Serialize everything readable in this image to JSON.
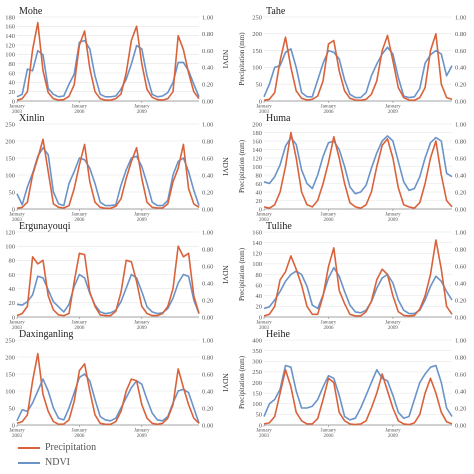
{
  "colors": {
    "precipitation": "#d9623b",
    "ndvi": "#6a93c9",
    "grid": "#e3e3e3",
    "axis": "#888888"
  },
  "legend": {
    "precipitation_label": "Precipitation",
    "ndvi_label": "NDVI"
  },
  "left_y_label": "Precipitation (mm)",
  "right_y_label": "NDVI",
  "x_ticks": [
    {
      "label": "January",
      "year": "2003",
      "i": 0
    },
    {
      "label": "January",
      "year": "2006",
      "i": 12
    },
    {
      "label": "January",
      "year": "2009",
      "i": 24
    }
  ],
  "chart_data": [
    {
      "type": "line",
      "title": "Mohe",
      "ylim": [
        0,
        180
      ],
      "yticks": [
        0,
        20,
        40,
        60,
        80,
        100,
        120,
        140,
        160,
        180
      ],
      "ylim2": [
        0,
        1.0
      ],
      "yticks2": [
        "0.00",
        "0.20",
        "0.40",
        "0.60",
        "0.80",
        "1.00"
      ],
      "show_left_label": false,
      "show_right_label": true,
      "series": [
        {
          "name": "Precipitation",
          "values": [
            2,
            5,
            20,
            110,
            168,
            65,
            18,
            5,
            2,
            3,
            10,
            35,
            120,
            150,
            70,
            20,
            5,
            2,
            2,
            5,
            15,
            60,
            130,
            160,
            80,
            25,
            8,
            3,
            2,
            5,
            20,
            140,
            110,
            60,
            20,
            5
          ]
        },
        {
          "name": "NDVI",
          "values": [
            0.05,
            0.08,
            0.38,
            0.36,
            0.6,
            0.55,
            0.15,
            0.08,
            0.05,
            0.06,
            0.2,
            0.32,
            0.7,
            0.72,
            0.62,
            0.3,
            0.08,
            0.05,
            0.05,
            0.06,
            0.14,
            0.26,
            0.44,
            0.66,
            0.62,
            0.3,
            0.08,
            0.05,
            0.06,
            0.1,
            0.22,
            0.46,
            0.46,
            0.36,
            0.2,
            0.05
          ]
        }
      ]
    },
    {
      "type": "line",
      "title": "Tahe",
      "ylim": [
        0,
        250
      ],
      "yticks": [
        0,
        50,
        100,
        150,
        200,
        250
      ],
      "ylim2": [
        0,
        1.0
      ],
      "yticks2": [
        "0.00",
        "0.20",
        "0.40",
        "0.60",
        "0.80",
        "1.00"
      ],
      "show_left_label": true,
      "show_right_label": false,
      "series": [
        {
          "name": "Precipitation",
          "values": [
            2,
            5,
            25,
            120,
            190,
            100,
            30,
            8,
            3,
            5,
            15,
            60,
            170,
            180,
            90,
            30,
            8,
            3,
            2,
            5,
            20,
            60,
            150,
            195,
            120,
            40,
            10,
            3,
            2,
            10,
            40,
            150,
            200,
            50,
            10,
            5
          ]
        },
        {
          "name": "NDVI",
          "values": [
            0.05,
            0.2,
            0.4,
            0.42,
            0.58,
            0.62,
            0.4,
            0.1,
            0.05,
            0.05,
            0.25,
            0.45,
            0.6,
            0.58,
            0.5,
            0.25,
            0.08,
            0.04,
            0.04,
            0.1,
            0.3,
            0.44,
            0.56,
            0.64,
            0.56,
            0.28,
            0.06,
            0.04,
            0.05,
            0.15,
            0.45,
            0.55,
            0.6,
            0.56,
            0.3,
            0.42
          ]
        }
      ]
    },
    {
      "type": "line",
      "title": "Xinlin",
      "ylim": [
        0,
        250
      ],
      "yticks": [
        0,
        50,
        100,
        150,
        200,
        250
      ],
      "ylim2": [
        0,
        1.0
      ],
      "yticks2": [
        "0.00",
        "0.20",
        "0.40",
        "0.60",
        "0.80",
        "1.00"
      ],
      "show_left_label": false,
      "show_right_label": true,
      "series": [
        {
          "name": "Precipitation",
          "values": [
            2,
            5,
            20,
            100,
            150,
            205,
            110,
            15,
            5,
            3,
            10,
            60,
            130,
            190,
            80,
            20,
            5,
            2,
            2,
            8,
            30,
            90,
            140,
            180,
            90,
            20,
            5,
            3,
            3,
            15,
            80,
            120,
            190,
            60,
            15,
            5
          ]
        },
        {
          "name": "NDVI",
          "values": [
            0.18,
            0.05,
            0.26,
            0.42,
            0.62,
            0.72,
            0.64,
            0.2,
            0.06,
            0.04,
            0.3,
            0.44,
            0.6,
            0.58,
            0.48,
            0.3,
            0.08,
            0.04,
            0.04,
            0.05,
            0.28,
            0.46,
            0.6,
            0.62,
            0.5,
            0.3,
            0.08,
            0.04,
            0.04,
            0.1,
            0.4,
            0.56,
            0.6,
            0.44,
            0.22,
            0.04
          ]
        }
      ]
    },
    {
      "type": "line",
      "title": "Huma",
      "ylim": [
        0,
        200
      ],
      "yticks": [
        0,
        20,
        40,
        60,
        80,
        100,
        120,
        140,
        160,
        180,
        200
      ],
      "ylim2": [
        0,
        1.0
      ],
      "yticks2": [
        "0.00",
        "0.20",
        "0.40",
        "0.60",
        "0.80",
        "1.00"
      ],
      "show_left_label": true,
      "show_right_label": false,
      "series": [
        {
          "name": "Precipitation",
          "values": [
            5,
            2,
            10,
            40,
            100,
            180,
            120,
            40,
            10,
            5,
            20,
            60,
            110,
            170,
            120,
            60,
            15,
            5,
            2,
            10,
            40,
            100,
            150,
            165,
            120,
            50,
            10,
            5,
            2,
            15,
            60,
            120,
            160,
            80,
            20,
            5
          ]
        },
        {
          "name": "NDVI",
          "values": [
            0.32,
            0.3,
            0.38,
            0.52,
            0.74,
            0.84,
            0.76,
            0.46,
            0.3,
            0.24,
            0.4,
            0.62,
            0.78,
            0.8,
            0.7,
            0.5,
            0.26,
            0.18,
            0.2,
            0.28,
            0.48,
            0.66,
            0.8,
            0.86,
            0.8,
            0.56,
            0.32,
            0.22,
            0.24,
            0.38,
            0.6,
            0.78,
            0.84,
            0.8,
            0.42,
            0.38
          ]
        }
      ]
    },
    {
      "type": "line",
      "title": "Ergunayouqi",
      "ylim": [
        0,
        120
      ],
      "yticks": [
        0,
        20,
        40,
        60,
        80,
        100,
        120
      ],
      "ylim2": [
        0,
        1.0
      ],
      "yticks2": [
        "0.00",
        "0.20",
        "0.40",
        "0.60",
        "0.80",
        "1.00"
      ],
      "show_left_label": false,
      "show_right_label": true,
      "series": [
        {
          "name": "Precipitation",
          "values": [
            2,
            5,
            15,
            85,
            75,
            80,
            30,
            10,
            3,
            2,
            5,
            50,
            90,
            88,
            35,
            15,
            3,
            2,
            2,
            8,
            35,
            80,
            78,
            50,
            15,
            5,
            2,
            2,
            5,
            15,
            40,
            100,
            85,
            90,
            30,
            5
          ]
        },
        {
          "name": "NDVI",
          "values": [
            0.15,
            0.14,
            0.18,
            0.26,
            0.48,
            0.46,
            0.32,
            0.18,
            0.12,
            0.06,
            0.15,
            0.36,
            0.5,
            0.46,
            0.28,
            0.14,
            0.06,
            0.04,
            0.05,
            0.08,
            0.18,
            0.34,
            0.5,
            0.46,
            0.3,
            0.12,
            0.06,
            0.04,
            0.05,
            0.1,
            0.22,
            0.4,
            0.5,
            0.48,
            0.2,
            0.04
          ]
        }
      ]
    },
    {
      "type": "line",
      "title": "Tulihe",
      "ylim": [
        0,
        160
      ],
      "yticks": [
        0,
        20,
        40,
        60,
        80,
        100,
        120,
        140,
        160
      ],
      "ylim2": [
        0,
        1.0
      ],
      "yticks2": [
        "0.00",
        "0.20",
        "0.40",
        "0.60",
        "0.80",
        "1.00"
      ],
      "show_left_label": true,
      "show_right_label": false,
      "series": [
        {
          "name": "Precipitation",
          "values": [
            2,
            5,
            20,
            70,
            85,
            115,
            90,
            60,
            20,
            5,
            5,
            40,
            95,
            130,
            50,
            25,
            5,
            2,
            2,
            10,
            30,
            70,
            90,
            80,
            40,
            10,
            3,
            2,
            3,
            15,
            40,
            80,
            145,
            90,
            20,
            5
          ]
        },
        {
          "name": "NDVI",
          "values": [
            0.1,
            0.12,
            0.2,
            0.3,
            0.42,
            0.5,
            0.54,
            0.5,
            0.36,
            0.14,
            0.1,
            0.26,
            0.46,
            0.58,
            0.48,
            0.3,
            0.14,
            0.06,
            0.05,
            0.08,
            0.18,
            0.34,
            0.46,
            0.5,
            0.4,
            0.2,
            0.08,
            0.04,
            0.04,
            0.08,
            0.2,
            0.36,
            0.48,
            0.42,
            0.3,
            0.2
          ]
        }
      ]
    },
    {
      "type": "line",
      "title": "Daxinganling",
      "ylim": [
        0,
        250
      ],
      "yticks": [
        0,
        50,
        100,
        150,
        200,
        250
      ],
      "ylim2": [
        0,
        1.0
      ],
      "yticks2": [
        "0.00",
        "0.20",
        "0.40",
        "0.60",
        "0.80",
        "1.00"
      ],
      "show_left_label": false,
      "show_right_label": true,
      "series": [
        {
          "name": "Precipitation",
          "values": [
            5,
            10,
            30,
            130,
            210,
            90,
            40,
            10,
            2,
            3,
            15,
            70,
            160,
            180,
            100,
            30,
            5,
            2,
            2,
            10,
            40,
            100,
            135,
            130,
            60,
            20,
            5,
            2,
            5,
            20,
            60,
            165,
            110,
            60,
            20,
            5
          ]
        },
        {
          "name": "NDVI",
          "values": [
            0.05,
            0.18,
            0.16,
            0.26,
            0.4,
            0.54,
            0.4,
            0.2,
            0.08,
            0.06,
            0.2,
            0.38,
            0.56,
            0.6,
            0.52,
            0.3,
            0.1,
            0.06,
            0.05,
            0.08,
            0.2,
            0.32,
            0.44,
            0.52,
            0.48,
            0.3,
            0.14,
            0.06,
            0.05,
            0.1,
            0.26,
            0.4,
            0.42,
            0.38,
            0.2,
            0.02
          ]
        }
      ]
    },
    {
      "type": "line",
      "title": "Heihe",
      "ylim": [
        0,
        400
      ],
      "yticks": [
        0,
        50,
        100,
        150,
        200,
        250,
        300,
        350,
        400
      ],
      "ylim2": [
        0,
        1.0
      ],
      "yticks2": [
        "0.00",
        "0.20",
        "0.40",
        "0.60",
        "0.80",
        "1.00"
      ],
      "show_left_label": true,
      "show_right_label": false,
      "series": [
        {
          "name": "Precipitation",
          "values": [
            5,
            10,
            40,
            150,
            260,
            180,
            60,
            20,
            5,
            5,
            30,
            120,
            220,
            200,
            60,
            20,
            5,
            2,
            5,
            20,
            80,
            150,
            240,
            160,
            80,
            20,
            5,
            2,
            10,
            50,
            150,
            220,
            150,
            60,
            15,
            5
          ]
        },
        {
          "name": "NDVI",
          "values": [
            0.1,
            0.25,
            0.3,
            0.42,
            0.7,
            0.68,
            0.4,
            0.2,
            0.2,
            0.22,
            0.3,
            0.45,
            0.58,
            0.55,
            0.35,
            0.1,
            0.06,
            0.08,
            0.2,
            0.35,
            0.5,
            0.65,
            0.55,
            0.52,
            0.35,
            0.15,
            0.08,
            0.1,
            0.3,
            0.5,
            0.6,
            0.68,
            0.7,
            0.5,
            0.2,
            0.1
          ]
        }
      ]
    }
  ]
}
